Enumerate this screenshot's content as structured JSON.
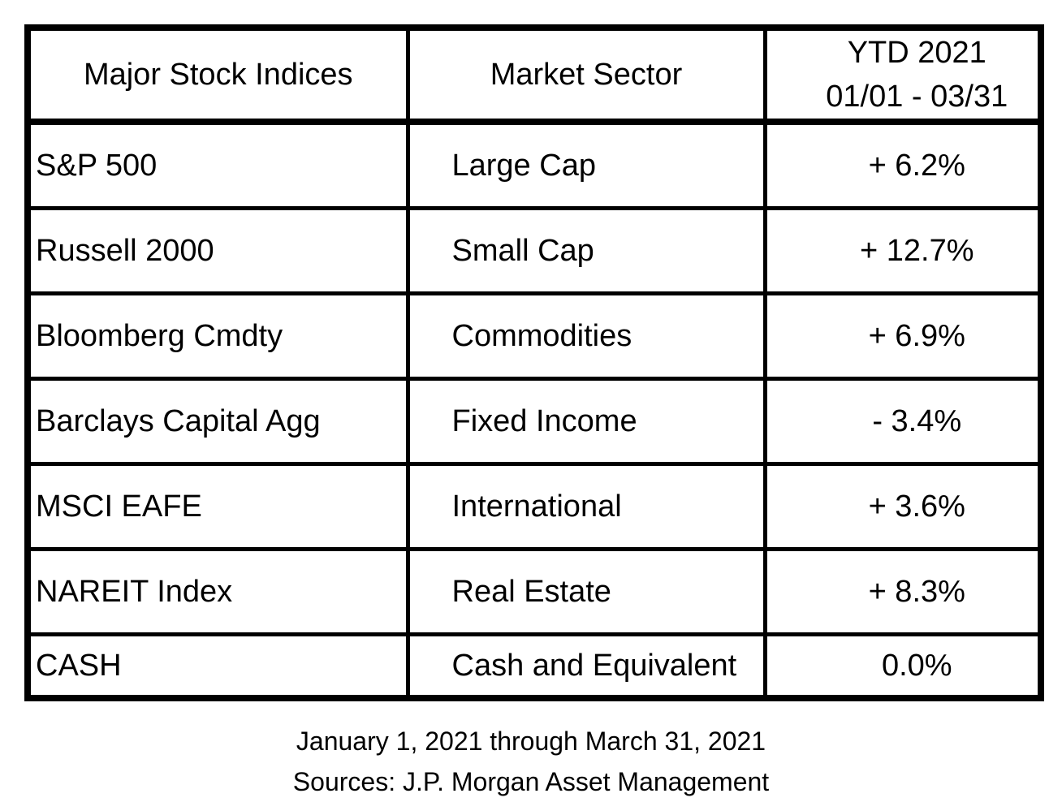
{
  "chart_data": {
    "type": "table",
    "title": "Major Stock Indices YTD 2021 performance",
    "columns": [
      "Major Stock Indices",
      "Market Sector",
      "YTD 2021 01/01 - 03/31"
    ],
    "rows": [
      [
        "S&P 500",
        "Large Cap",
        "+ 6.2%"
      ],
      [
        "Russell 2000",
        "Small Cap",
        "+ 12.7%"
      ],
      [
        "Bloomberg Cmdty",
        "Commodities",
        "+ 6.9%"
      ],
      [
        "Barclays Capital Agg",
        "Fixed Income",
        "- 3.4%"
      ],
      [
        "MSCI EAFE",
        "International",
        "+ 3.6%"
      ],
      [
        "NAREIT Index",
        "Real Estate",
        "+ 8.3%"
      ],
      [
        "CASH",
        "Cash and Equivalent",
        "0.0%"
      ]
    ],
    "ytd_values_pct": [
      6.2,
      12.7,
      6.9,
      -3.4,
      3.6,
      8.3,
      0.0
    ],
    "notes": [
      "January 1, 2021 through March 31, 2021",
      "Sources: J.P. Morgan Asset Management"
    ]
  },
  "table": {
    "headers": {
      "indices": "Major Stock Indices",
      "sector": "Market Sector",
      "ytd_line1": "YTD 2021",
      "ytd_line2": "01/01 - 03/31"
    },
    "rows": [
      {
        "index_name": "S&P 500",
        "sector": "Large Cap",
        "ytd": "+ 6.2%"
      },
      {
        "index_name": "Russell 2000",
        "sector": "Small Cap",
        "ytd": "+ 12.7%"
      },
      {
        "index_name": "Bloomberg Cmdty",
        "sector": "Commodities",
        "ytd": "+ 6.9%"
      },
      {
        "index_name": "Barclays Capital Agg",
        "sector": "Fixed Income",
        "ytd": "- 3.4%"
      },
      {
        "index_name": "MSCI EAFE",
        "sector": "International",
        "ytd": "+ 3.6%"
      },
      {
        "index_name": "NAREIT Index",
        "sector": "Real Estate",
        "ytd": "+ 8.3%"
      },
      {
        "index_name": "CASH",
        "sector": "Cash and Equivalent",
        "ytd": "0.0%"
      }
    ]
  },
  "footer": {
    "line1": "January 1, 2021 through March 31, 2021",
    "line2": "Sources: J.P. Morgan Asset Management"
  },
  "colors": {
    "background": "#ffffff",
    "border": "#000000",
    "text": "#000000"
  }
}
